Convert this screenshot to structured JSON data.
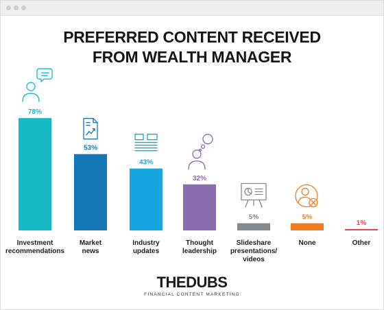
{
  "window": {
    "controls": [
      "close",
      "minimize",
      "maximize"
    ]
  },
  "chart_data": {
    "type": "bar",
    "title": "PREFERRED CONTENT RECEIVED FROM WEALTH MANAGER",
    "title_lines": [
      "PREFERRED CONTENT RECEIVED",
      "FROM WEALTH MANAGER"
    ],
    "categories": [
      [
        "Investment",
        "recommendations"
      ],
      [
        "Market",
        "news"
      ],
      [
        "Industry",
        "updates"
      ],
      [
        "Thought",
        "leadership"
      ],
      [
        "Slideshare",
        "presentations/",
        "videos"
      ],
      [
        "None"
      ],
      [
        "Other"
      ]
    ],
    "values": [
      78,
      53,
      43,
      32,
      5,
      5,
      1
    ],
    "value_labels": [
      "78%",
      "53%",
      "43%",
      "32%",
      "5%",
      "5%",
      "1%"
    ],
    "colors": [
      "#16b8c5",
      "#1577b6",
      "#15a6e0",
      "#8b6bb0",
      "#86898c",
      "#ef7c20",
      "#e8444b"
    ],
    "icons": [
      "advisor-chat-icon",
      "chart-document-icon",
      "newsletter-icon",
      "thinking-person-icon",
      "presentation-icon",
      "person-blocked-icon",
      ""
    ],
    "ylim": [
      0,
      100
    ],
    "grid": false,
    "legend": "none"
  },
  "brand": {
    "logo_text": "THEDUBS",
    "tagline": "FINANCIAL CONTENT MARKETING"
  }
}
